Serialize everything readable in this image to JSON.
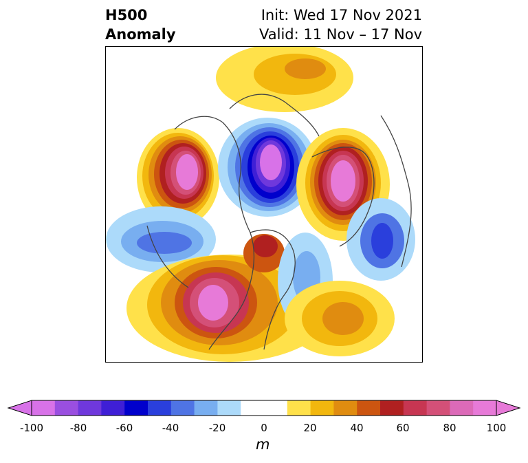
{
  "title": {
    "left_line1": "H500",
    "left_line2": "Anomaly",
    "right_line1": "Init: Wed 17 Nov 2021",
    "right_line2": "Valid: 11 Nov – 17 Nov"
  },
  "colorbar": {
    "ticks": [
      "-100",
      "-80",
      "-60",
      "-40",
      "-20",
      "0",
      "20",
      "40",
      "60",
      "80",
      "100"
    ],
    "unit": "m",
    "colors": [
      "#d872e8",
      "#9a4fe0",
      "#6f38dc",
      "#3f1fd6",
      "#0000cc",
      "#2a3fdc",
      "#4f74e4",
      "#78aef0",
      "#acdafa",
      "#ffffff",
      "#ffffff",
      "#ffe14a",
      "#f2b70e",
      "#e08c10",
      "#cc5510",
      "#b02020",
      "#c73652",
      "#d45078",
      "#dc6ab8",
      "#e77ad8"
    ]
  },
  "legend_colors": {
    "neg_strong": "#e77ad8",
    "neg_mid": "#0000cc",
    "pos_strong": "#e77ad8",
    "neutral": "#ffffff"
  }
}
